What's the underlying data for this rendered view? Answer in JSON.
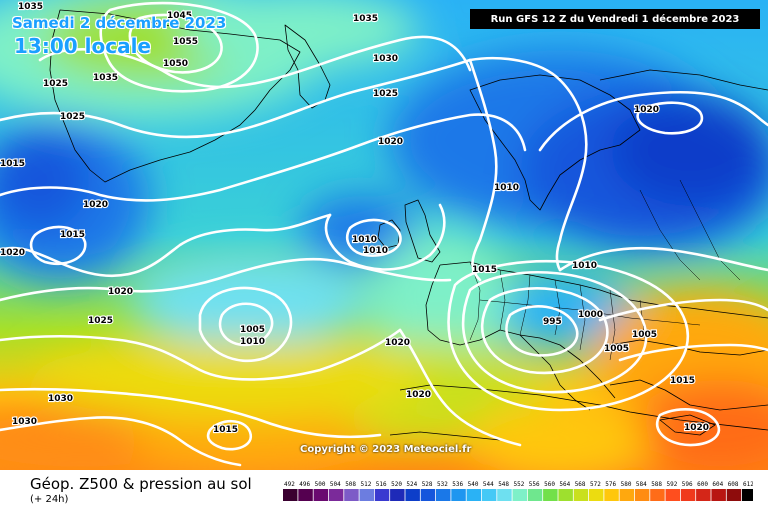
{
  "header": {
    "date": "Samedi 2 décembre 2023",
    "local_time": "13:00 locale",
    "run": "Run GFS 12 Z du Vendredi 1 décembre 2023"
  },
  "footer": {
    "title": "Géop. Z500 & pression au sol",
    "subtitle": "(+ 24h)",
    "copyright": "Copyright © 2023 Meteociel.fr"
  },
  "scale": {
    "values": [
      "492",
      "496",
      "500",
      "504",
      "508",
      "512",
      "516",
      "520",
      "524",
      "528",
      "532",
      "536",
      "540",
      "544",
      "548",
      "552",
      "556",
      "560",
      "564",
      "568",
      "572",
      "576",
      "580",
      "584",
      "588",
      "592",
      "596",
      "600",
      "604",
      "608",
      "612"
    ],
    "colors": [
      "#3a0030",
      "#550050",
      "#6a0a70",
      "#7b2a9a",
      "#7d5bc7",
      "#6c7de0",
      "#3a3ad0",
      "#1e2ab8",
      "#0d3ec9",
      "#1556dc",
      "#1a78e8",
      "#1f96f0",
      "#2ab2f5",
      "#45c9f6",
      "#6ee0f0",
      "#7ef0c8",
      "#6fe78e",
      "#72e04a",
      "#9ee02e",
      "#c9e01e",
      "#ecdc10",
      "#ffc70c",
      "#ffa80e",
      "#ff8c12",
      "#ff6c18",
      "#ff4e1e",
      "#f03a1c",
      "#d42618",
      "#b81612",
      "#8e0c0c",
      "#000000"
    ]
  },
  "map": {
    "pressure_labels": [
      {
        "text": "1035"
      },
      {
        "text": "1045"
      },
      {
        "text": "1055"
      },
      {
        "text": "1050"
      },
      {
        "text": "1035"
      },
      {
        "text": "1035"
      },
      {
        "text": "1030"
      },
      {
        "text": "1025"
      },
      {
        "text": "1025"
      },
      {
        "text": "1025"
      },
      {
        "text": "1020"
      },
      {
        "text": "1015"
      },
      {
        "text": "1020"
      },
      {
        "text": "1015"
      },
      {
        "text": "1020"
      },
      {
        "text": "1010"
      },
      {
        "text": "1010"
      },
      {
        "text": "1015"
      },
      {
        "text": "1010"
      },
      {
        "text": "1020"
      },
      {
        "text": "1020"
      },
      {
        "text": "1025"
      },
      {
        "text": "1005"
      },
      {
        "text": "1010"
      },
      {
        "text": "1020"
      },
      {
        "text": "995"
      },
      {
        "text": "1000"
      },
      {
        "text": "1005"
      },
      {
        "text": "1005"
      },
      {
        "text": "1010"
      },
      {
        "text": "1015"
      },
      {
        "text": "1020"
      },
      {
        "text": "1030"
      },
      {
        "text": "1030"
      },
      {
        "text": "1015"
      },
      {
        "text": "1020"
      }
    ]
  }
}
